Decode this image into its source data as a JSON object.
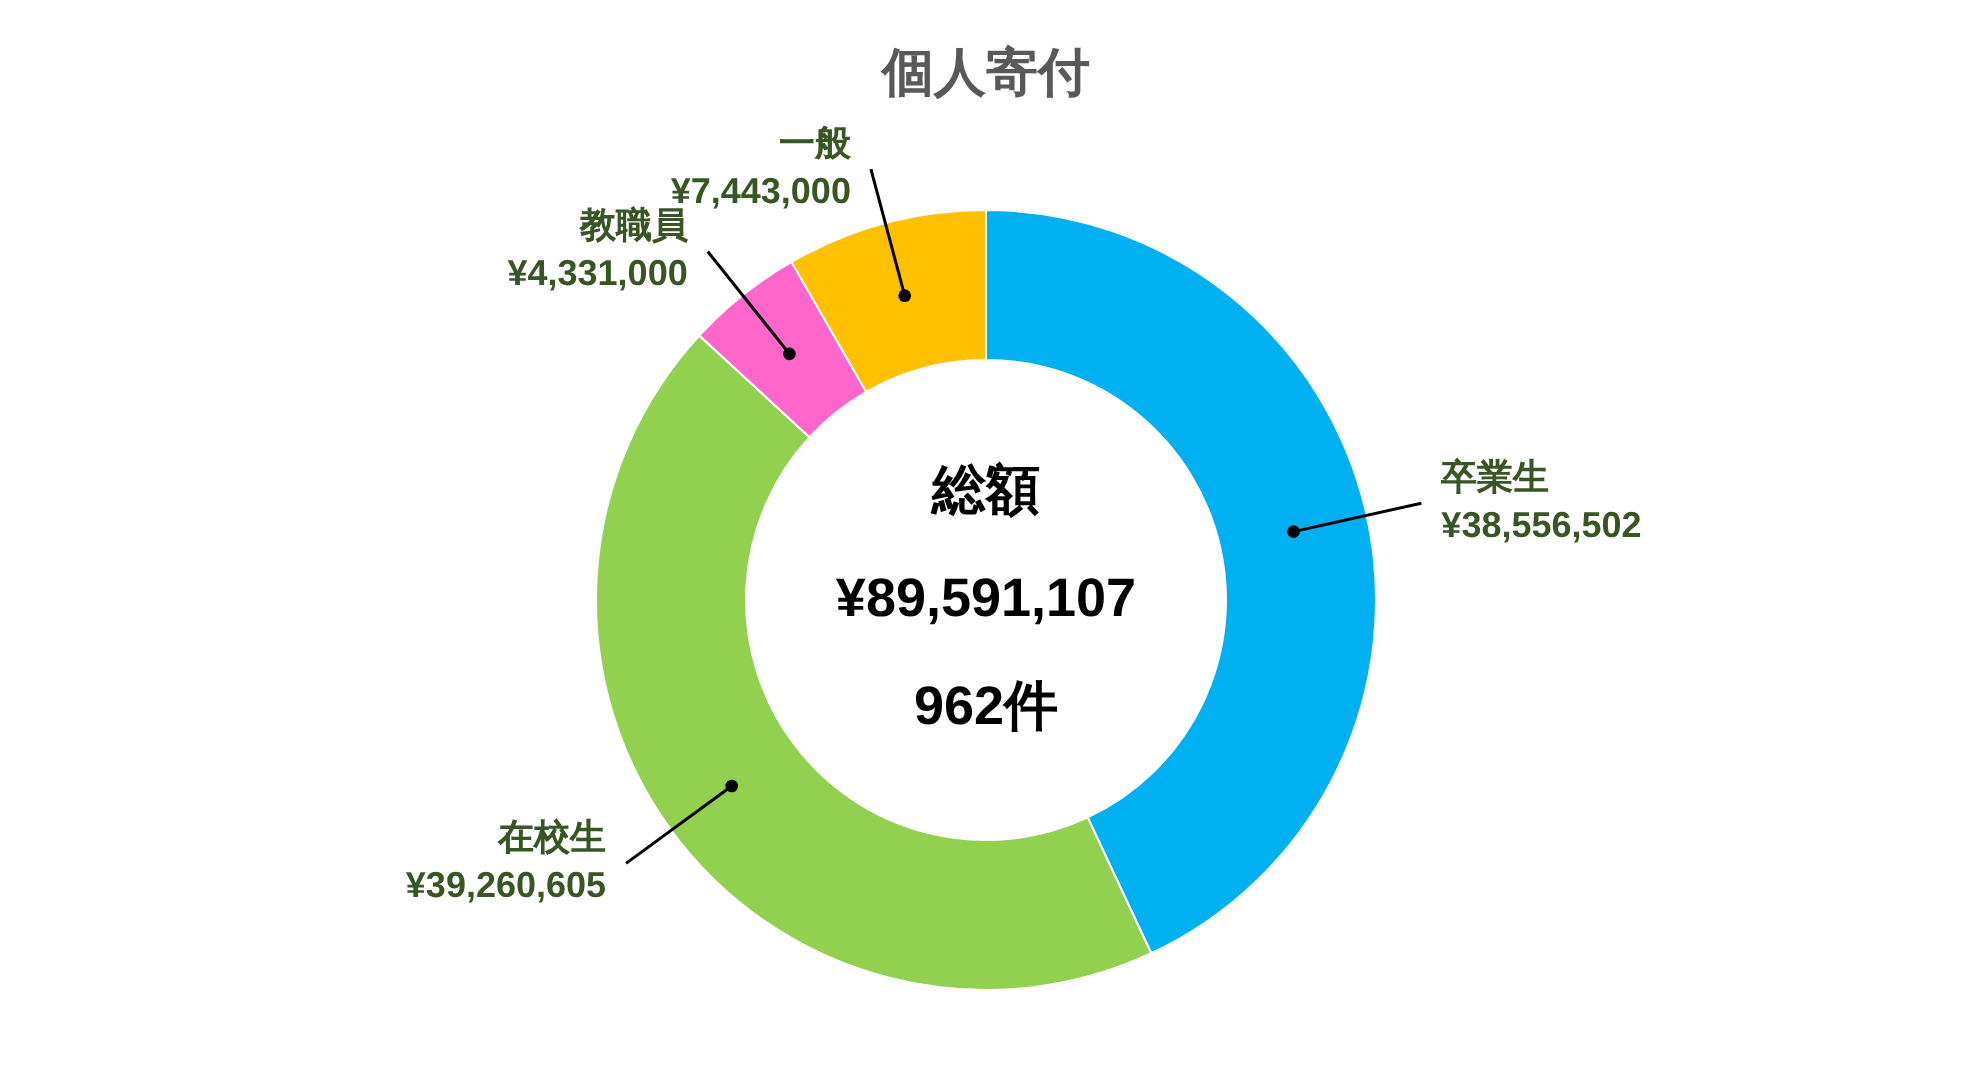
{
  "chart_data": {
    "type": "donut",
    "title": "個人寄付",
    "categories": [
      "卒業生",
      "在校生",
      "教職員",
      "一般"
    ],
    "values": [
      38556502,
      39260605,
      4331000,
      7443000
    ],
    "value_labels": [
      "¥38,556,502",
      "¥39,260,605",
      "¥4,331,000",
      "¥7,443,000"
    ],
    "colors": [
      "#00b0f0",
      "#92d050",
      "#ff66cc",
      "#ffc000"
    ],
    "annotations": [
      "総額",
      "¥89,591,107",
      "962件"
    ],
    "legend": false
  }
}
